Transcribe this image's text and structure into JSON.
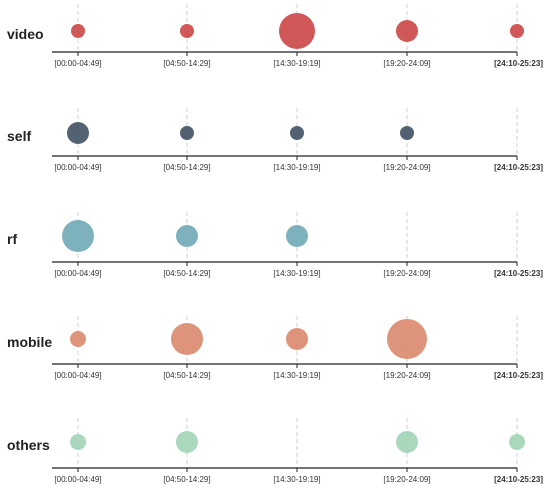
{
  "chart_data": {
    "type": "scatter",
    "encoding": "bubble",
    "title": "",
    "xlabel": "",
    "ylabel": "",
    "categories": [
      "[00:00-04:49]",
      "[04:50-14:29]",
      "[14:30-19:19]",
      "[19:20-24:09]",
      "[24:10-25:23]"
    ],
    "series": [
      {
        "name": "video",
        "color": "#cf4f4f",
        "values": [
          14,
          14,
          36,
          22,
          14
        ]
      },
      {
        "name": "self",
        "color": "#4a5a6a",
        "values": [
          22,
          14,
          14,
          14,
          null
        ]
      },
      {
        "name": "rf",
        "color": "#76aeb8",
        "values": [
          32,
          22,
          22,
          null,
          null
        ]
      },
      {
        "name": "mobile",
        "color": "#dc8e74",
        "values": [
          16,
          32,
          22,
          40,
          null
        ]
      },
      {
        "name": "others",
        "color": "#a5d6b8",
        "values": [
          16,
          22,
          null,
          22,
          16
        ]
      }
    ],
    "grid": "vertical dashed",
    "legend": "none"
  }
}
